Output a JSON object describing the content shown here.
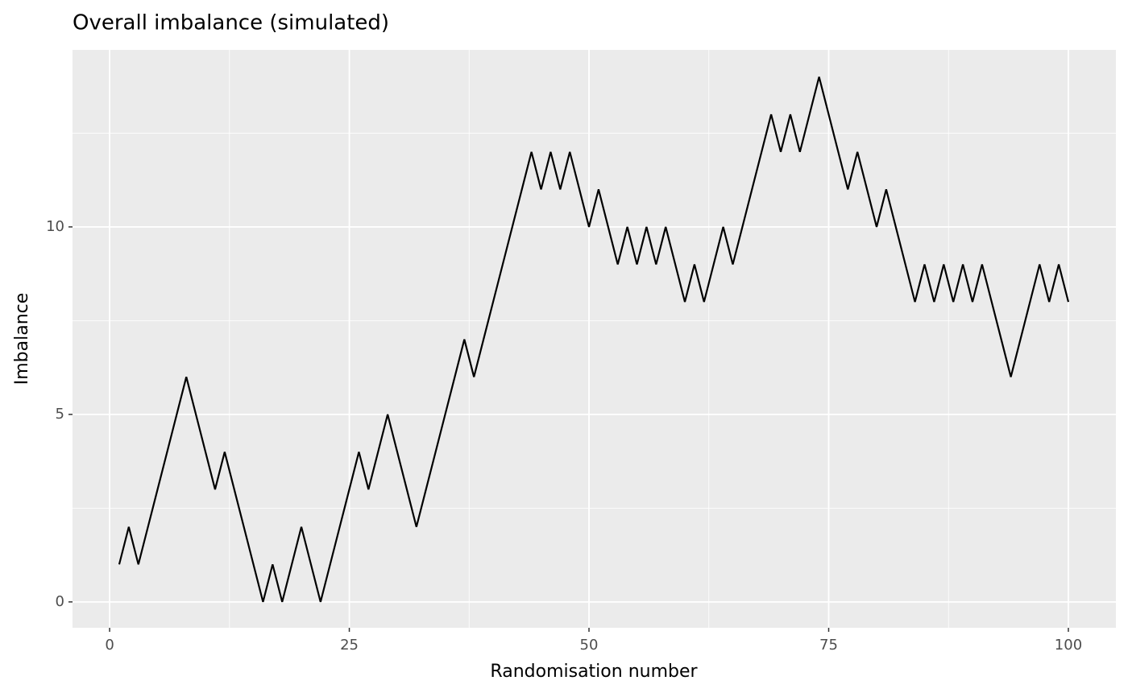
{
  "chart_data": {
    "type": "line",
    "title": "Overall imbalance (simulated)",
    "x_label": "Randomisation number",
    "y_label": "Imbalance",
    "x": [
      1,
      2,
      3,
      4,
      5,
      6,
      7,
      8,
      9,
      10,
      11,
      12,
      13,
      14,
      15,
      16,
      17,
      18,
      19,
      20,
      21,
      22,
      23,
      24,
      25,
      26,
      27,
      28,
      29,
      30,
      31,
      32,
      33,
      34,
      35,
      36,
      37,
      38,
      39,
      40,
      41,
      42,
      43,
      44,
      45,
      46,
      47,
      48,
      49,
      50,
      51,
      52,
      53,
      54,
      55,
      56,
      57,
      58,
      59,
      60,
      61,
      62,
      63,
      64,
      65,
      66,
      67,
      68,
      69,
      70,
      71,
      72,
      73,
      74,
      75,
      76,
      77,
      78,
      79,
      80,
      81,
      82,
      83,
      84,
      85,
      86,
      87,
      88,
      89,
      90,
      91,
      92,
      93,
      94,
      95,
      96,
      97,
      98,
      99,
      100
    ],
    "series": [
      {
        "color": "#000000",
        "values": [
          1,
          2,
          1,
          2,
          3,
          4,
          5,
          6,
          5,
          4,
          3,
          4,
          3,
          2,
          1,
          0,
          1,
          0,
          1,
          2,
          1,
          0,
          1,
          2,
          3,
          4,
          3,
          4,
          5,
          4,
          3,
          2,
          3,
          4,
          5,
          6,
          7,
          6,
          7,
          8,
          9,
          10,
          11,
          12,
          11,
          12,
          11,
          12,
          11,
          10,
          11,
          10,
          9,
          10,
          9,
          10,
          9,
          10,
          9,
          8,
          9,
          8,
          9,
          10,
          9,
          10,
          11,
          12,
          13,
          12,
          13,
          12,
          13,
          14,
          13,
          12,
          11,
          12,
          11,
          10,
          11,
          10,
          9,
          8,
          9,
          8,
          9,
          8,
          9,
          8,
          9,
          8,
          7,
          6,
          7,
          8,
          9,
          8,
          9,
          8
        ]
      }
    ],
    "xlim": [
      -3.87,
      104.96
    ],
    "ylim": [
      -0.69,
      14.72
    ],
    "xticks": [
      0,
      25,
      50,
      75,
      100
    ],
    "yticks": [
      0,
      5,
      10
    ],
    "grid": true,
    "minor_grid": true,
    "background": "#ebebeb"
  }
}
